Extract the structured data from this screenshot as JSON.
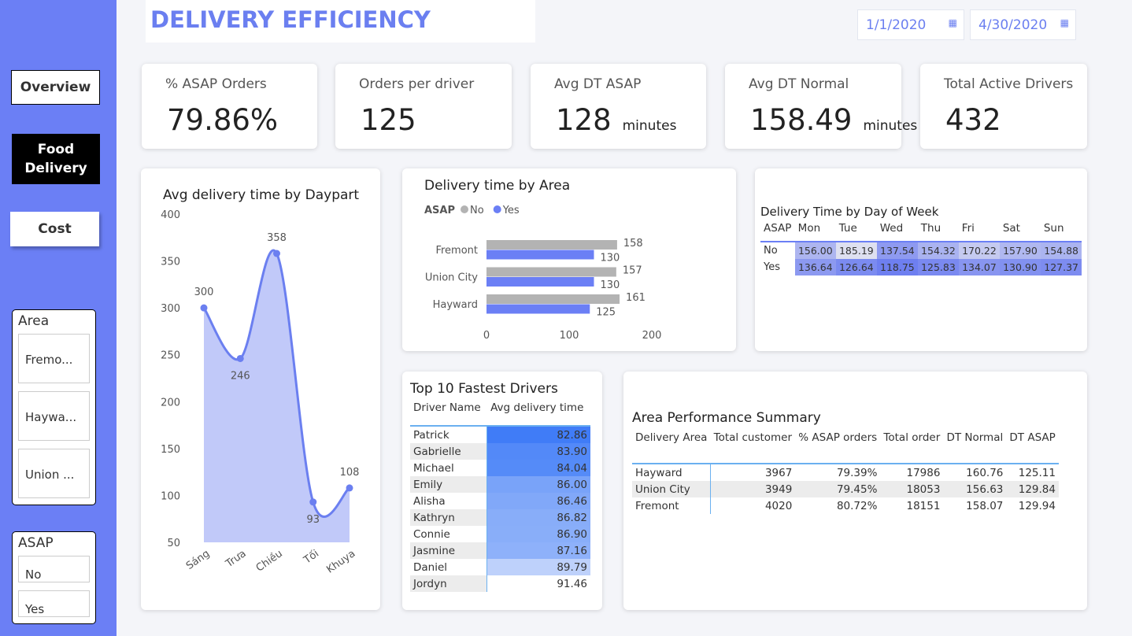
{
  "header": {
    "title": "DELIVERY EFFICIENCY",
    "date_start": "1/1/2020",
    "date_end": "4/30/2020"
  },
  "nav": [
    "Overview",
    "Food Delivery",
    "Cost"
  ],
  "slicers": [
    {
      "title": "Area",
      "items": [
        "Fremo...",
        "Haywa...",
        "Union ..."
      ]
    },
    {
      "title": "ASAP",
      "items": [
        "No",
        "Yes"
      ]
    }
  ],
  "kpis": [
    {
      "label": "% ASAP Orders",
      "value": "79.86%"
    },
    {
      "label": "Orders per driver",
      "value": "125"
    },
    {
      "label": "Avg DT ASAP",
      "value": "128",
      "unit": "minutes"
    },
    {
      "label": "Avg DT Normal",
      "value": "158.49",
      "unit": "minutes"
    },
    {
      "label": "Total Active Drivers",
      "value": "432"
    }
  ],
  "chart_data": [
    {
      "type": "area",
      "title": "Avg delivery time by Daypart",
      "categories": [
        "Sáng",
        "Trưa",
        "Chiều",
        "Tối",
        "Khuya"
      ],
      "values": [
        300,
        246,
        358,
        93,
        108
      ],
      "color": "#6b7ff0",
      "ylim": [
        50,
        400
      ],
      "yticks": [
        50,
        100,
        150,
        200,
        250,
        300,
        350,
        400
      ]
    },
    {
      "type": "hbar",
      "title": "Delivery time by Area",
      "legend_title": "ASAP",
      "categories": [
        "Fremont",
        "Union City",
        "Hayward"
      ],
      "series": [
        {
          "name": "No",
          "color": "#b3b3b3",
          "values": [
            158,
            157,
            161
          ]
        },
        {
          "name": "Yes",
          "color": "#6b7ff5",
          "values": [
            130,
            130,
            125
          ]
        }
      ],
      "xlim": [
        0,
        200
      ],
      "xticks": [
        0,
        100,
        200
      ]
    }
  ],
  "dow_table": {
    "title": "Delivery Time by Day of Week",
    "columns": [
      "ASAP",
      "Mon",
      "Tue",
      "Wed",
      "Thu",
      "Fri",
      "Sat",
      "Sun"
    ],
    "rows": [
      [
        "No",
        "156.00",
        "185.19",
        "137.54",
        "154.32",
        "170.22",
        "157.90",
        "154.88"
      ],
      [
        "Yes",
        "136.64",
        "126.64",
        "118.75",
        "125.83",
        "134.07",
        "130.90",
        "127.37"
      ]
    ]
  },
  "drivers_table": {
    "title": "Top 10 Fastest Drivers",
    "columns": [
      "Driver Name",
      "Avg delivery time"
    ],
    "rows": [
      [
        "Patrick",
        "82.86"
      ],
      [
        "Gabrielle",
        "83.90"
      ],
      [
        "Michael",
        "84.04"
      ],
      [
        "Emily",
        "86.00"
      ],
      [
        "Alisha",
        "86.46"
      ],
      [
        "Kathryn",
        "86.82"
      ],
      [
        "Connie",
        "86.90"
      ],
      [
        "Jasmine",
        "87.16"
      ],
      [
        "Daniel",
        "89.79"
      ],
      [
        "Jordyn",
        "91.46"
      ]
    ]
  },
  "summary_table": {
    "title": "Area Performance Summary",
    "columns": [
      "Delivery Area",
      "Total customer",
      "% ASAP orders",
      "Total order",
      "DT Normal",
      "DT ASAP"
    ],
    "rows": [
      [
        "Hayward",
        "3967",
        "79.39%",
        "17986",
        "160.76",
        "125.11"
      ],
      [
        "Union City",
        "3949",
        "79.45%",
        "18053",
        "156.63",
        "129.84"
      ],
      [
        "Fremont",
        "4020",
        "80.72%",
        "18151",
        "158.07",
        "129.94"
      ]
    ]
  }
}
